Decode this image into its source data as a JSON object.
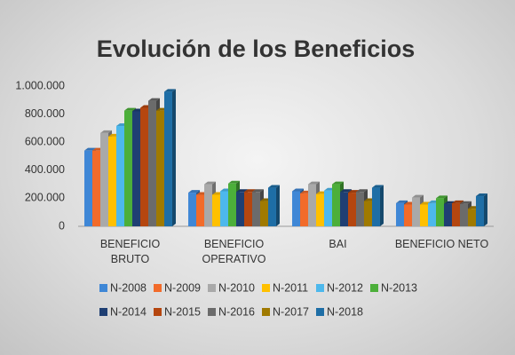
{
  "chart_data": {
    "type": "bar3d",
    "title": "Evolución de los Beneficios",
    "categories": [
      "BENEFICIO\nBRUTO",
      "BENEFICIO\nOPERATIVO",
      "BAI",
      "BENEFICIO NETO"
    ],
    "series": [
      {
        "name": "N-2008",
        "color": "#3f87d6",
        "values": [
          540000,
          240000,
          250000,
          165000
        ]
      },
      {
        "name": "N-2009",
        "color": "#f26b2a",
        "values": [
          540000,
          225000,
          235000,
          155000
        ]
      },
      {
        "name": "N-2010",
        "color": "#a9a9a9",
        "values": [
          665000,
          300000,
          300000,
          205000
        ]
      },
      {
        "name": "N-2011",
        "color": "#ffc000",
        "values": [
          640000,
          225000,
          230000,
          155000
        ]
      },
      {
        "name": "N-2012",
        "color": "#4db8ec",
        "values": [
          715000,
          250000,
          255000,
          165000
        ]
      },
      {
        "name": "N-2013",
        "color": "#4caf3a",
        "values": [
          825000,
          305000,
          300000,
          200000
        ]
      },
      {
        "name": "N-2014",
        "color": "#1f3f73",
        "values": [
          820000,
          245000,
          245000,
          160000
        ]
      },
      {
        "name": "N-2015",
        "color": "#b5460f",
        "values": [
          845000,
          245000,
          240000,
          165000
        ]
      },
      {
        "name": "N-2016",
        "color": "#6b6b6b",
        "values": [
          895000,
          245000,
          245000,
          160000
        ]
      },
      {
        "name": "N-2017",
        "color": "#a07a00",
        "values": [
          825000,
          180000,
          180000,
          125000
        ]
      },
      {
        "name": "N-2018",
        "color": "#1e6ea6",
        "values": [
          960000,
          275000,
          275000,
          215000
        ]
      }
    ],
    "ylim": [
      0,
      1000000
    ],
    "yticks": [
      0,
      {
        "value": 200000,
        "label": "200.000"
      },
      {
        "value": 400000,
        "label": "400.000"
      },
      {
        "value": 600000,
        "label": "600.000"
      },
      {
        "value": 800000,
        "label": "800.000"
      },
      {
        "value": 1000000,
        "label": "1.000.000"
      }
    ],
    "grid": false
  }
}
